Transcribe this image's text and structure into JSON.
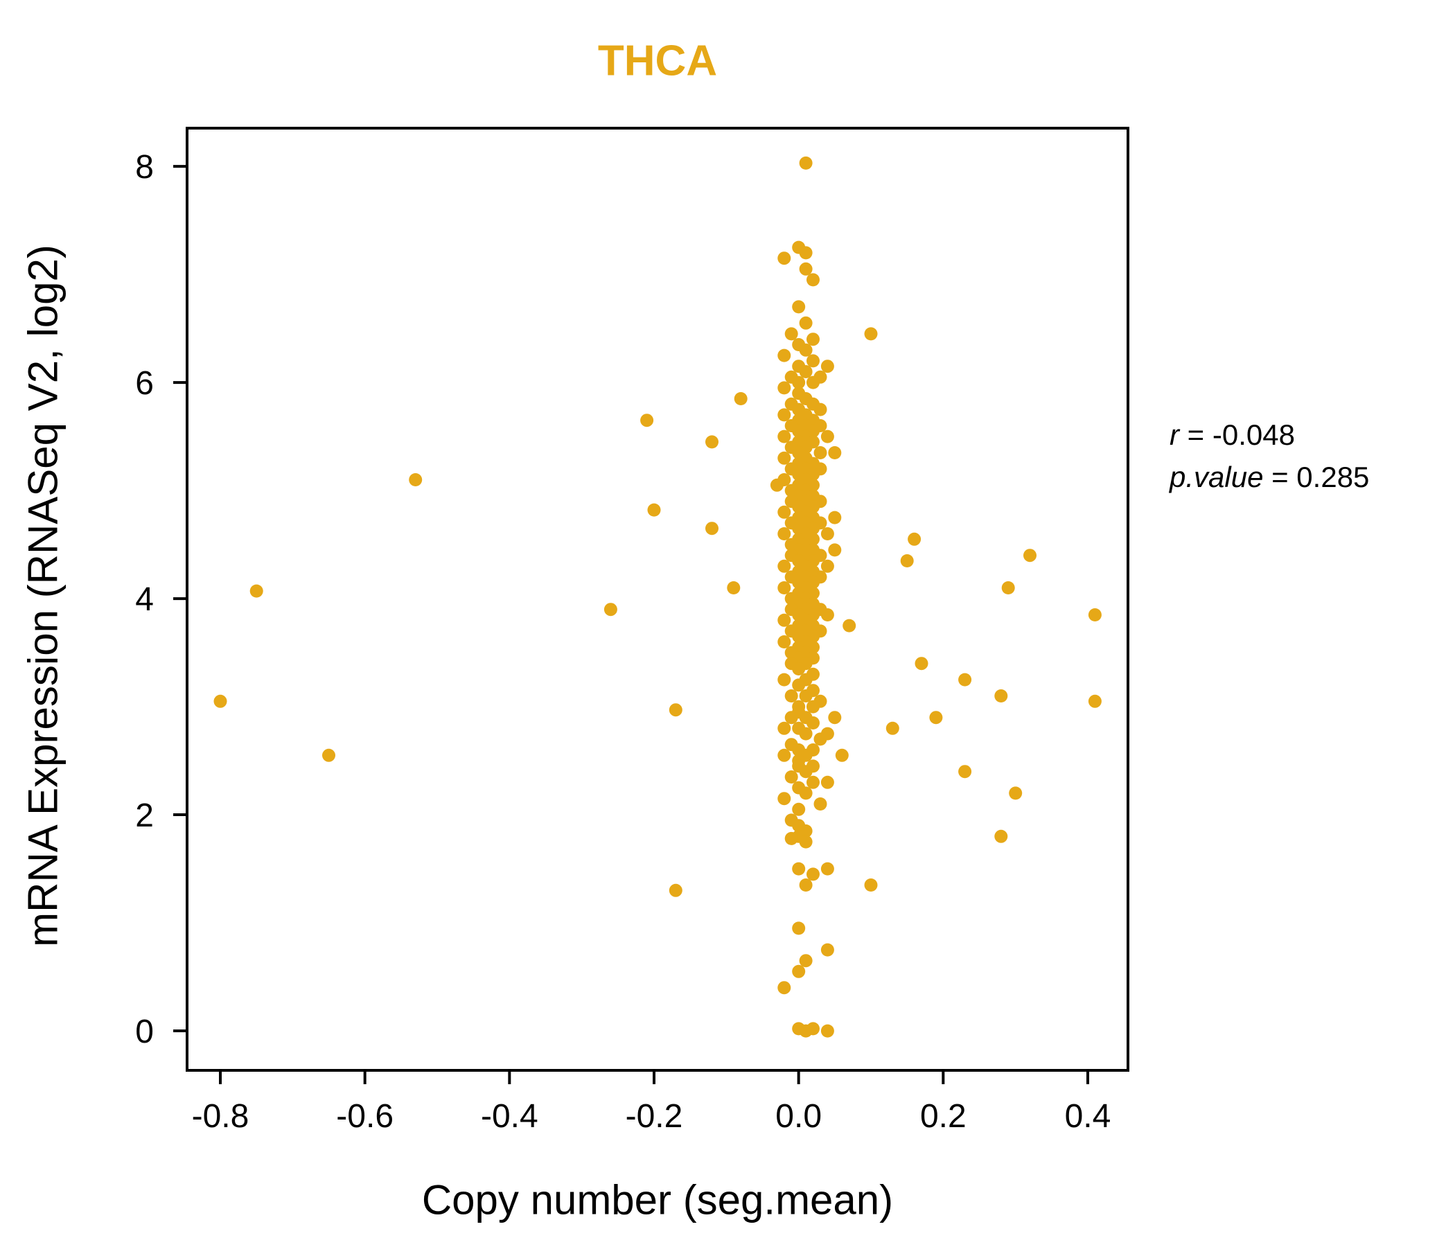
{
  "title": "THCA",
  "annotation": {
    "r_name": "r",
    "r_rest": " = -0.048",
    "p_name": "p.value",
    "p_rest": " = 0.285"
  },
  "chart_data": {
    "type": "scatter",
    "title": "THCA",
    "xlabel": "Copy number (seg.mean)",
    "ylabel": "mRNA Expression (RNASeq V2, log2)",
    "xlim": [
      -0.846,
      0.4556
    ],
    "ylim": [
      -0.365,
      8.353
    ],
    "grid": false,
    "point_color": "#E6A817",
    "stats": {
      "r": -0.048,
      "p_value": 0.285
    },
    "x_ticks": [
      {
        "value": -0.8,
        "label": "-0.8"
      },
      {
        "value": -0.6,
        "label": "-0.6"
      },
      {
        "value": -0.4,
        "label": "-0.4"
      },
      {
        "value": -0.2,
        "label": "-0.2"
      },
      {
        "value": 0.0,
        "label": "0.0"
      },
      {
        "value": 0.2,
        "label": "0.2"
      },
      {
        "value": 0.4,
        "label": "0.4"
      }
    ],
    "y_ticks": [
      {
        "value": 0,
        "label": "0"
      },
      {
        "value": 2,
        "label": "2"
      },
      {
        "value": 4,
        "label": "4"
      },
      {
        "value": 6,
        "label": "6"
      },
      {
        "value": 8,
        "label": "8"
      }
    ],
    "points": [
      [
        -0.8,
        3.05
      ],
      [
        -0.75,
        4.07
      ],
      [
        -0.65,
        2.55
      ],
      [
        -0.53,
        5.1
      ],
      [
        -0.26,
        3.9
      ],
      [
        -0.21,
        5.65
      ],
      [
        -0.2,
        4.82
      ],
      [
        -0.17,
        2.97
      ],
      [
        -0.17,
        1.3
      ],
      [
        -0.12,
        5.45
      ],
      [
        -0.12,
        4.65
      ],
      [
        -0.09,
        4.1
      ],
      [
        -0.08,
        5.85
      ],
      [
        0.1,
        6.45
      ],
      [
        0.1,
        1.35
      ],
      [
        0.13,
        2.8
      ],
      [
        0.16,
        4.55
      ],
      [
        0.15,
        4.35
      ],
      [
        0.17,
        3.4
      ],
      [
        0.19,
        2.9
      ],
      [
        0.23,
        3.25
      ],
      [
        0.23,
        2.4
      ],
      [
        0.28,
        3.1
      ],
      [
        0.29,
        4.1
      ],
      [
        0.3,
        2.2
      ],
      [
        0.28,
        1.8
      ],
      [
        0.32,
        4.4
      ],
      [
        0.41,
        3.85
      ],
      [
        0.41,
        3.05
      ],
      [
        0.07,
        3.75
      ],
      [
        0.06,
        2.55
      ],
      [
        0.05,
        4.75
      ],
      [
        0.01,
        8.03
      ],
      [
        -0.02,
        7.15
      ],
      [
        0.0,
        7.25
      ],
      [
        0.01,
        7.2
      ],
      [
        0.01,
        7.05
      ],
      [
        0.02,
        6.95
      ],
      [
        0.0,
        6.7
      ],
      [
        0.01,
        6.55
      ],
      [
        -0.01,
        6.45
      ],
      [
        0.02,
        6.4
      ],
      [
        0.0,
        6.35
      ],
      [
        0.01,
        6.3
      ],
      [
        -0.02,
        6.25
      ],
      [
        0.02,
        6.2
      ],
      [
        0.0,
        6.15
      ],
      [
        0.01,
        6.1
      ],
      [
        -0.01,
        6.05
      ],
      [
        0.03,
        6.05
      ],
      [
        0.0,
        6.0
      ],
      [
        0.02,
        6.0
      ],
      [
        -0.02,
        5.95
      ],
      [
        0.04,
        6.15
      ],
      [
        0.0,
        5.9
      ],
      [
        0.01,
        5.85
      ],
      [
        -0.01,
        5.8
      ],
      [
        0.02,
        5.8
      ],
      [
        0.0,
        5.75
      ],
      [
        0.03,
        5.75
      ],
      [
        -0.02,
        5.7
      ],
      [
        0.01,
        5.7
      ],
      [
        0.0,
        5.65
      ],
      [
        0.02,
        5.65
      ],
      [
        -0.01,
        5.6
      ],
      [
        0.01,
        5.6
      ],
      [
        0.03,
        5.6
      ],
      [
        0.0,
        5.55
      ],
      [
        0.02,
        5.55
      ],
      [
        -0.02,
        5.5
      ],
      [
        0.01,
        5.5
      ],
      [
        0.04,
        5.5
      ],
      [
        0.05,
        5.35
      ],
      [
        0.0,
        5.45
      ],
      [
        0.02,
        5.45
      ],
      [
        -0.01,
        5.4
      ],
      [
        0.01,
        5.4
      ],
      [
        0.0,
        5.35
      ],
      [
        0.03,
        5.35
      ],
      [
        -0.02,
        5.3
      ],
      [
        0.01,
        5.3
      ],
      [
        0.0,
        5.25
      ],
      [
        0.02,
        5.25
      ],
      [
        -0.01,
        5.2
      ],
      [
        0.01,
        5.2
      ],
      [
        0.03,
        5.2
      ],
      [
        0.0,
        5.15
      ],
      [
        0.02,
        5.15
      ],
      [
        -0.02,
        5.1
      ],
      [
        0.01,
        5.1
      ],
      [
        0.0,
        5.05
      ],
      [
        0.02,
        5.05
      ],
      [
        -0.01,
        5.0
      ],
      [
        0.01,
        5.0
      ],
      [
        -0.03,
        5.05
      ],
      [
        0.0,
        4.95
      ],
      [
        0.02,
        4.95
      ],
      [
        -0.01,
        4.9
      ],
      [
        0.01,
        4.9
      ],
      [
        0.03,
        4.9
      ],
      [
        0.0,
        4.85
      ],
      [
        0.02,
        4.85
      ],
      [
        -0.02,
        4.8
      ],
      [
        0.01,
        4.8
      ],
      [
        0.0,
        4.75
      ],
      [
        0.02,
        4.75
      ],
      [
        -0.01,
        4.7
      ],
      [
        0.01,
        4.7
      ],
      [
        0.03,
        4.7
      ],
      [
        0.0,
        4.65
      ],
      [
        0.02,
        4.65
      ],
      [
        -0.02,
        4.6
      ],
      [
        0.01,
        4.6
      ],
      [
        0.0,
        4.55
      ],
      [
        0.02,
        4.55
      ],
      [
        -0.01,
        4.5
      ],
      [
        0.01,
        4.5
      ],
      [
        0.04,
        4.6
      ],
      [
        0.0,
        4.45
      ],
      [
        0.02,
        4.45
      ],
      [
        -0.01,
        4.4
      ],
      [
        0.01,
        4.4
      ],
      [
        0.03,
        4.4
      ],
      [
        0.0,
        4.35
      ],
      [
        0.02,
        4.35
      ],
      [
        -0.02,
        4.3
      ],
      [
        0.01,
        4.3
      ],
      [
        0.0,
        4.25
      ],
      [
        0.02,
        4.25
      ],
      [
        -0.01,
        4.2
      ],
      [
        0.01,
        4.2
      ],
      [
        0.03,
        4.2
      ],
      [
        0.0,
        4.15
      ],
      [
        0.02,
        4.15
      ],
      [
        -0.02,
        4.1
      ],
      [
        0.01,
        4.1
      ],
      [
        0.0,
        4.05
      ],
      [
        0.02,
        4.05
      ],
      [
        -0.01,
        4.0
      ],
      [
        0.01,
        4.0
      ],
      [
        0.04,
        4.3
      ],
      [
        0.05,
        4.45
      ],
      [
        0.0,
        3.95
      ],
      [
        0.02,
        3.95
      ],
      [
        -0.01,
        3.9
      ],
      [
        0.01,
        3.9
      ],
      [
        0.03,
        3.9
      ],
      [
        0.0,
        3.85
      ],
      [
        0.02,
        3.85
      ],
      [
        -0.02,
        3.8
      ],
      [
        0.01,
        3.8
      ],
      [
        0.0,
        3.75
      ],
      [
        0.02,
        3.75
      ],
      [
        -0.01,
        3.7
      ],
      [
        0.01,
        3.7
      ],
      [
        0.03,
        3.7
      ],
      [
        0.0,
        3.65
      ],
      [
        0.02,
        3.65
      ],
      [
        -0.02,
        3.6
      ],
      [
        0.01,
        3.6
      ],
      [
        0.0,
        3.55
      ],
      [
        0.02,
        3.55
      ],
      [
        -0.01,
        3.5
      ],
      [
        0.01,
        3.5
      ],
      [
        0.04,
        3.85
      ],
      [
        0.0,
        3.45
      ],
      [
        0.02,
        3.45
      ],
      [
        -0.01,
        3.4
      ],
      [
        0.01,
        3.4
      ],
      [
        0.0,
        3.35
      ],
      [
        0.02,
        3.3
      ],
      [
        -0.02,
        3.25
      ],
      [
        0.01,
        3.25
      ],
      [
        0.0,
        3.2
      ],
      [
        0.02,
        3.15
      ],
      [
        -0.01,
        3.1
      ],
      [
        0.01,
        3.1
      ],
      [
        0.03,
        3.05
      ],
      [
        0.0,
        3.0
      ],
      [
        0.02,
        3.0
      ],
      [
        0.0,
        2.95
      ],
      [
        -0.01,
        2.9
      ],
      [
        0.01,
        2.9
      ],
      [
        0.02,
        2.85
      ],
      [
        -0.02,
        2.8
      ],
      [
        0.0,
        2.8
      ],
      [
        0.01,
        2.75
      ],
      [
        0.03,
        2.7
      ],
      [
        -0.01,
        2.65
      ],
      [
        0.0,
        2.6
      ],
      [
        0.02,
        2.6
      ],
      [
        0.01,
        2.55
      ],
      [
        -0.02,
        2.55
      ],
      [
        0.0,
        2.5
      ],
      [
        0.04,
        2.75
      ],
      [
        0.05,
        2.9
      ],
      [
        0.0,
        2.45
      ],
      [
        0.01,
        2.4
      ],
      [
        -0.01,
        2.35
      ],
      [
        0.02,
        2.3
      ],
      [
        0.0,
        2.25
      ],
      [
        0.01,
        2.2
      ],
      [
        -0.02,
        2.15
      ],
      [
        0.03,
        2.1
      ],
      [
        0.0,
        2.05
      ],
      [
        0.02,
        2.45
      ],
      [
        0.04,
        2.3
      ],
      [
        -0.01,
        1.95
      ],
      [
        0.0,
        1.9
      ],
      [
        0.01,
        1.85
      ],
      [
        0.0,
        1.8
      ],
      [
        -0.01,
        1.78
      ],
      [
        0.01,
        1.75
      ],
      [
        0.0,
        1.5
      ],
      [
        0.02,
        1.45
      ],
      [
        0.01,
        1.35
      ],
      [
        0.04,
        1.5
      ],
      [
        0.0,
        0.95
      ],
      [
        0.01,
        0.65
      ],
      [
        0.0,
        0.55
      ],
      [
        0.04,
        0.75
      ],
      [
        -0.02,
        0.4
      ],
      [
        0.0,
        0.02
      ],
      [
        0.01,
        0.0
      ],
      [
        0.02,
        0.02
      ],
      [
        0.04,
        0.0
      ]
    ]
  }
}
